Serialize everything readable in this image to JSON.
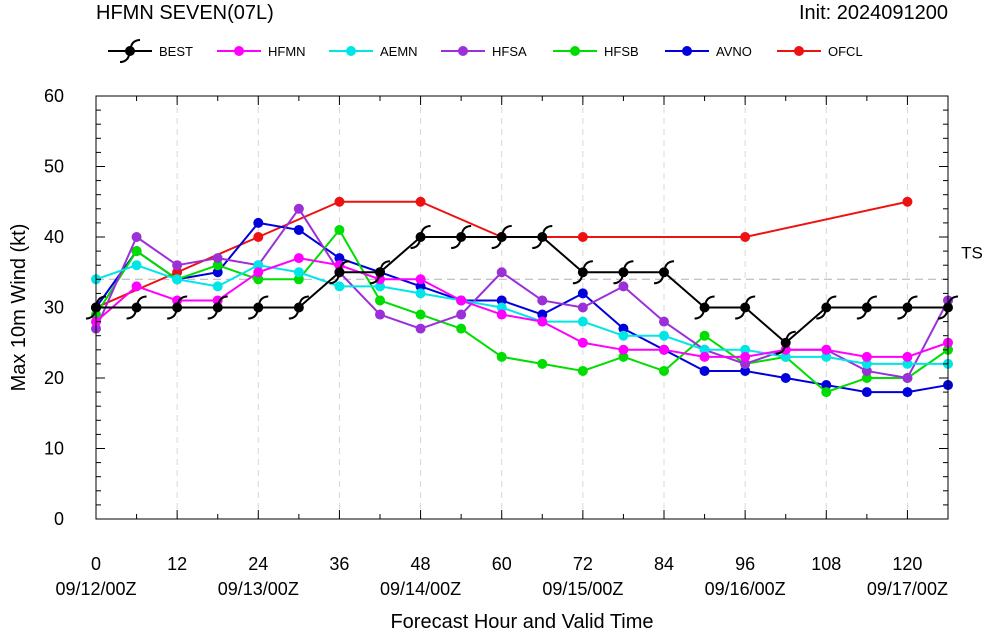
{
  "chart_data": {
    "type": "line",
    "title": "HFMN SEVEN(07L)",
    "init_label": "Init: 2024091200",
    "xlabel": "Forecast Hour and Valid Time",
    "ylabel": "Max 10m Wind (kt)",
    "xlim": [
      0,
      126
    ],
    "ylim": [
      0,
      60
    ],
    "x_ticks": [
      0,
      12,
      24,
      36,
      48,
      60,
      72,
      84,
      96,
      108,
      120
    ],
    "x_date_ticks": [
      {
        "x": 0,
        "label": "09/12/00Z"
      },
      {
        "x": 24,
        "label": "09/13/00Z"
      },
      {
        "x": 48,
        "label": "09/14/00Z"
      },
      {
        "x": 72,
        "label": "09/15/00Z"
      },
      {
        "x": 96,
        "label": "09/16/00Z"
      },
      {
        "x": 120,
        "label": "09/17/00Z"
      }
    ],
    "y_ticks": [
      0,
      10,
      20,
      30,
      40,
      50,
      60
    ],
    "grid": true,
    "legend_position": "top",
    "threshold": {
      "value": 34,
      "label": "TS"
    },
    "series": [
      {
        "name": "BEST",
        "color": "#000000",
        "marker": "hurricane",
        "x": [
          0,
          6,
          12,
          18,
          24,
          30,
          36,
          42,
          48,
          54,
          60,
          66,
          72,
          78,
          84,
          90,
          96,
          102,
          108,
          114,
          120,
          126
        ],
        "y": [
          30,
          30,
          30,
          30,
          30,
          30,
          35,
          35,
          40,
          40,
          40,
          40,
          35,
          35,
          35,
          30,
          30,
          25,
          30,
          30,
          30,
          30
        ]
      },
      {
        "name": "HFMN",
        "color": "#ff00ff",
        "marker": "dot",
        "x": [
          0,
          6,
          12,
          18,
          24,
          30,
          36,
          42,
          48,
          54,
          60,
          66,
          72,
          78,
          84,
          90,
          96,
          102,
          108,
          114,
          120,
          126
        ],
        "y": [
          28,
          33,
          31,
          31,
          35,
          37,
          36,
          34,
          34,
          31,
          29,
          28,
          25,
          24,
          24,
          23,
          23,
          24,
          24,
          23,
          23,
          25
        ]
      },
      {
        "name": "AEMN",
        "color": "#00e5e5",
        "marker": "dot",
        "x": [
          0,
          6,
          12,
          18,
          24,
          30,
          36,
          42,
          48,
          54,
          60,
          66,
          72,
          78,
          84,
          90,
          96,
          102,
          108,
          114,
          120,
          126
        ],
        "y": [
          34,
          36,
          34,
          33,
          36,
          35,
          33,
          33,
          32,
          31,
          30,
          28,
          28,
          26,
          26,
          24,
          24,
          23,
          23,
          22,
          22,
          22
        ]
      },
      {
        "name": "HFSA",
        "color": "#9b30d9",
        "marker": "dot",
        "x": [
          0,
          6,
          12,
          18,
          24,
          30,
          36,
          42,
          48,
          54,
          60,
          66,
          72,
          78,
          84,
          90,
          96,
          102,
          108,
          114,
          120,
          126
        ],
        "y": [
          27,
          40,
          36,
          37,
          36,
          44,
          35,
          29,
          27,
          29,
          35,
          31,
          30,
          33,
          28,
          24,
          22,
          24,
          24,
          21,
          20,
          31
        ]
      },
      {
        "name": "HFSB",
        "color": "#00dd00",
        "marker": "dot",
        "x": [
          0,
          6,
          12,
          18,
          24,
          30,
          36,
          42,
          48,
          54,
          60,
          66,
          72,
          78,
          84,
          90,
          96,
          102,
          108,
          114,
          120,
          126
        ],
        "y": [
          29,
          38,
          34,
          36,
          34,
          34,
          41,
          31,
          29,
          27,
          23,
          22,
          21,
          23,
          21,
          26,
          22,
          23,
          18,
          20,
          20,
          24
        ]
      },
      {
        "name": "AVNO",
        "color": "#0000dd",
        "marker": "dot",
        "x": [
          0,
          6,
          12,
          18,
          24,
          30,
          36,
          42,
          48,
          54,
          60,
          66,
          72,
          78,
          84,
          90,
          96,
          102,
          108,
          114,
          120,
          126
        ],
        "y": [
          30,
          38,
          34,
          35,
          42,
          41,
          37,
          35,
          33,
          31,
          31,
          29,
          32,
          27,
          24,
          21,
          21,
          20,
          19,
          18,
          18,
          19
        ]
      },
      {
        "name": "OFCL",
        "color": "#ee1111",
        "marker": "dot",
        "x": [
          0,
          12,
          24,
          36,
          48,
          60,
          72,
          96,
          120
        ],
        "y": [
          30,
          35,
          40,
          45,
          45,
          40,
          40,
          40,
          45
        ]
      }
    ]
  }
}
